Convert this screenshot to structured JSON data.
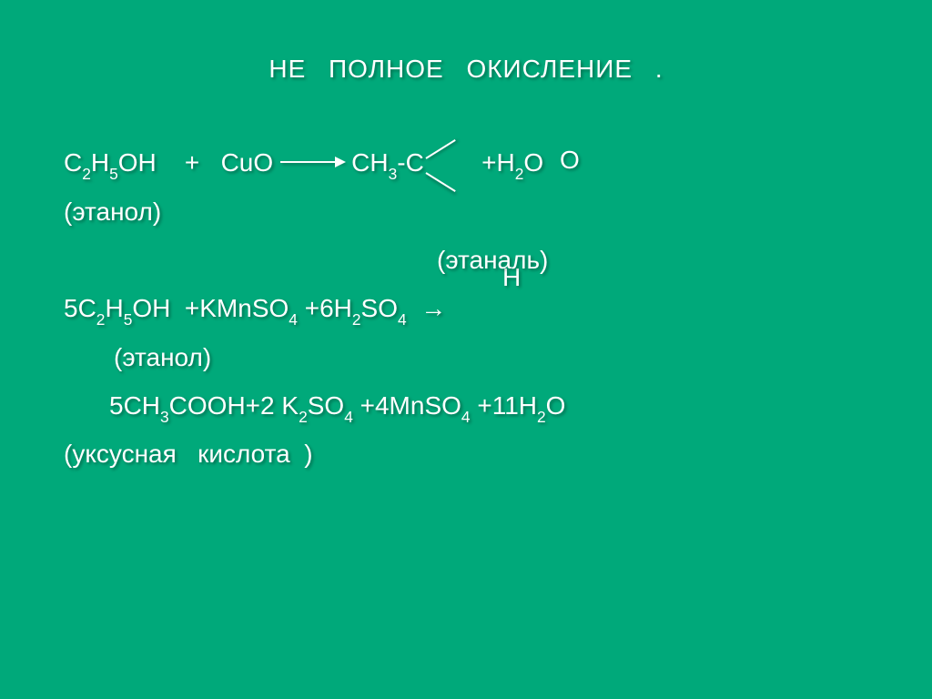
{
  "colors": {
    "background": "#00a97a",
    "text": "#ffffff",
    "shadow": "rgba(0,0,0,0.35)"
  },
  "typography": {
    "font_family": "Arial",
    "title_fontsize": 28,
    "body_fontsize": 28,
    "sub_scale": 0.62,
    "line_height": 1.9
  },
  "title": "НЕ    ПОЛНОЕ    ОКИСЛЕНИЕ   .",
  "float_O": "O",
  "float_H": "H",
  "eq1": {
    "left_a": "C",
    "left_a_sub": "2",
    "left_b": "H",
    "left_b_sub": "5",
    "left_c": "OH    +   CuO",
    "right_a": "CH",
    "right_a_sub": "3",
    "right_b": "-C",
    "tail": "   +H",
    "tail_sub": "2",
    "tail_end": "O"
  },
  "labels": {
    "ethanol1": "(этанол)",
    "ethanal": "(этаналь)",
    "ethanol2": "(этанол)",
    "acetic": "(уксусная   кислота  )"
  },
  "eq2": {
    "pre": "5C",
    "s1": "2",
    "a": "H",
    "s2": "5",
    "b": "OH  +KMnSO",
    "s3": "4",
    "c": " +6H",
    "s4": "2",
    "d": "SO",
    "s5": "4",
    "arrow": "  →"
  },
  "eq3": {
    "pre": "5CH",
    "s1": "3",
    "a": "COOH+2 K",
    "s2": "2",
    "b": "SO",
    "s3": "4",
    "c": " +4MnSO",
    "s4": "4",
    "d": " +11H",
    "s5": "2",
    "e": "O"
  }
}
